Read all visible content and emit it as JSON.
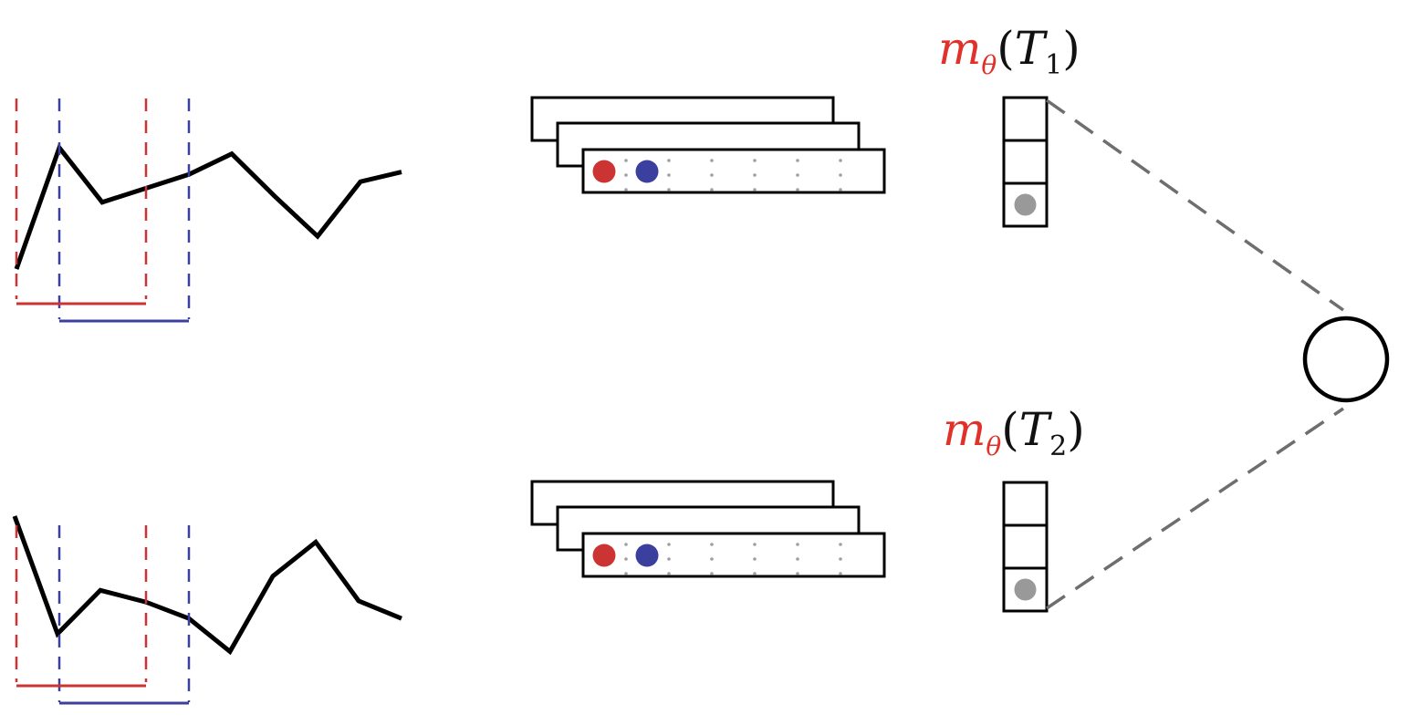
{
  "colors": {
    "window_a": "#cc3333",
    "window_b": "#3b3f9e",
    "series": "#000000",
    "embedding_dot": "#999999",
    "connector": "#6e6e6e"
  },
  "panels": [
    {
      "id": "top",
      "label": {
        "func": "m",
        "sub": "θ",
        "open": "(",
        "var": "T",
        "index": "1",
        "close": ")"
      },
      "series": [
        0.0,
        1.0,
        0.55,
        0.78,
        0.95,
        0.6,
        0.27,
        0.72,
        0.8
      ]
    },
    {
      "id": "bottom",
      "label": {
        "func": "m",
        "sub": "θ",
        "open": "(",
        "var": "T",
        "index": "2",
        "close": ")"
      },
      "series": [
        1.0,
        0.0,
        0.37,
        0.27,
        0.13,
        -0.15,
        0.49,
        0.78,
        0.28,
        0.13
      ]
    }
  ]
}
